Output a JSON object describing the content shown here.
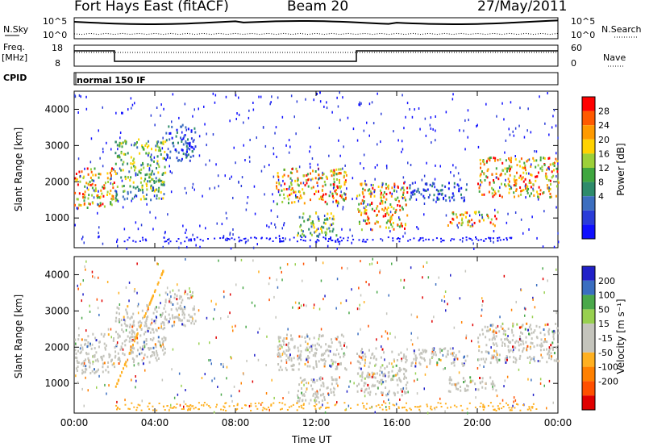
{
  "header": {
    "station": "Fort Hays East (fitACF)",
    "beam": "Beam 20",
    "date": "27/May/2011"
  },
  "aux": {
    "nsky_label": "N.Sky",
    "nsearch_label": "N.Search",
    "noise_ticks": [
      "10^5",
      "10^0"
    ],
    "noise_right_ticks": [
      "10^5",
      "10^0"
    ],
    "freq_label_1": "Freq.",
    "freq_label_2": "[MHz]",
    "freq_ticks": [
      "18",
      "8"
    ],
    "nave_label": "Nave",
    "nave_ticks": [
      "60",
      "0"
    ],
    "cpid_label": "CPID",
    "cpid_value": "normal 150 IF"
  },
  "chart_data": [
    {
      "type": "heatmap",
      "panel": "power",
      "ylabel": "Slant Range [km]",
      "xlabel": "Time UT",
      "xlim": [
        "00:00",
        "24:00"
      ],
      "ylim": [
        180,
        4500
      ],
      "yticks": [
        "4000",
        "3000",
        "2000",
        "1000"
      ],
      "xticks": [
        "00:00",
        "04:00",
        "08:00",
        "12:00",
        "16:00",
        "20:00",
        "00:00"
      ],
      "colorbar": {
        "label": "Power [dB]",
        "ticks": [
          "28",
          "24",
          "20",
          "16",
          "12",
          "8",
          "4"
        ],
        "colors": [
          "#ff0000",
          "#ff5a00",
          "#ff9a00",
          "#ffd200",
          "#9cd038",
          "#3fa63f",
          "#2e8b6b",
          "#3c6ebf",
          "#2a3cd8",
          "#1010ff"
        ]
      },
      "bands": [
        {
          "t": [
            0.0,
            2.0
          ],
          "r": [
            1300,
            2400
          ],
          "level": "high"
        },
        {
          "t": [
            2.0,
            4.5
          ],
          "r": [
            1500,
            3200
          ],
          "level": "mid"
        },
        {
          "t": [
            4.5,
            6.0
          ],
          "r": [
            2600,
            3600
          ],
          "level": "low"
        },
        {
          "t": [
            10.0,
            13.5
          ],
          "r": [
            1400,
            2400
          ],
          "level": "high"
        },
        {
          "t": [
            11.0,
            13.0
          ],
          "r": [
            500,
            1200
          ],
          "level": "mid"
        },
        {
          "t": [
            14.0,
            16.5
          ],
          "r": [
            700,
            2000
          ],
          "level": "high"
        },
        {
          "t": [
            16.5,
            19.5
          ],
          "r": [
            1500,
            2000
          ],
          "level": "low"
        },
        {
          "t": [
            18.5,
            21.0
          ],
          "r": [
            800,
            1200
          ],
          "level": "high"
        },
        {
          "t": [
            20.0,
            24.0
          ],
          "r": [
            1600,
            2700
          ],
          "level": "high"
        }
      ]
    },
    {
      "type": "heatmap",
      "panel": "velocity",
      "ylabel": "Slant Range [km]",
      "xlabel": "Time UT",
      "xlim": [
        "00:00",
        "24:00"
      ],
      "ylim": [
        180,
        4500
      ],
      "yticks": [
        "4000",
        "3000",
        "2000",
        "1000"
      ],
      "xticks": [
        "00:00",
        "04:00",
        "08:00",
        "12:00",
        "16:00",
        "20:00",
        "00:00"
      ],
      "colorbar": {
        "label": "Velocity [m s⁻¹]",
        "ticks": [
          "200",
          "100",
          "50",
          "15",
          "-15",
          "-50",
          "-100",
          "-200"
        ],
        "colors": [
          "#2020c8",
          "#3a6ec0",
          "#4aa84a",
          "#98d050",
          "#c4c4bc",
          "#c4c4bc",
          "#ffb020",
          "#ff8000",
          "#ff5000",
          "#e00000"
        ]
      }
    }
  ]
}
